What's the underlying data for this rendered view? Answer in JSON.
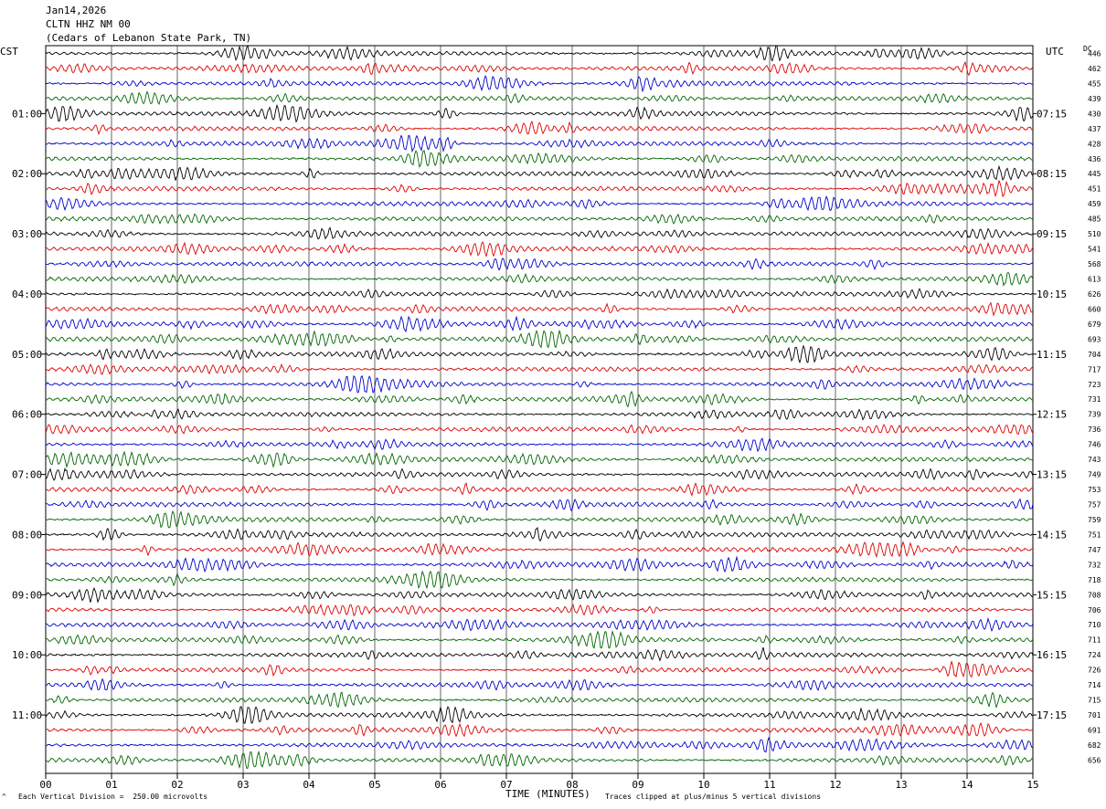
{
  "header": {
    "date": "Jan14,2026",
    "station": "CLTN HHZ NM 00",
    "location": "(Cedars of Lebanon State Park, TN)"
  },
  "labels": {
    "left_zone": "CST",
    "right_zone": "UTC",
    "dc_header": "DC",
    "xlabel": "TIME (MINUTES)",
    "scale_note": "Each Vertical Division =  250.00 microvolts",
    "clip_note": "Traces clipped at plus/minus 5 vertical divisions",
    "corner_mark": "^"
  },
  "colors": {
    "trace_cycle": [
      "#000000",
      "#dd0000",
      "#0000cc",
      "#006600"
    ],
    "grid": "#000000"
  },
  "chart_data": {
    "type": "line",
    "xlim": [
      0,
      15
    ],
    "x_ticks": [
      "00",
      "01",
      "02",
      "03",
      "04",
      "05",
      "06",
      "07",
      "08",
      "09",
      "10",
      "11",
      "12",
      "13",
      "14",
      "15"
    ],
    "row_count": 48,
    "rows_per_hour": 4,
    "left_hour_labels": [
      "01:00",
      "02:00",
      "03:00",
      "04:00",
      "05:00",
      "06:00",
      "07:00",
      "08:00",
      "09:00",
      "10:00",
      "11:00"
    ],
    "right_hour_labels": [
      "07:15",
      "08:15",
      "09:15",
      "10:15",
      "11:15",
      "12:15",
      "13:15",
      "14:15",
      "15:15",
      "16:15",
      "17:15"
    ],
    "dc_offsets": [
      "446",
      "462",
      "455",
      "439",
      "430",
      "437",
      "428",
      "436",
      "445",
      "451",
      "459",
      "485",
      "510",
      "541",
      "568",
      "613",
      "626",
      "660",
      "679",
      "693",
      "704",
      "717",
      "723",
      "731",
      "739",
      "736",
      "746",
      "743",
      "749",
      "753",
      "757",
      "759",
      "751",
      "747",
      "732",
      "718",
      "708",
      "706",
      "710",
      "711",
      "724",
      "726",
      "714",
      "715",
      "701",
      "691",
      "682",
      "656"
    ]
  }
}
